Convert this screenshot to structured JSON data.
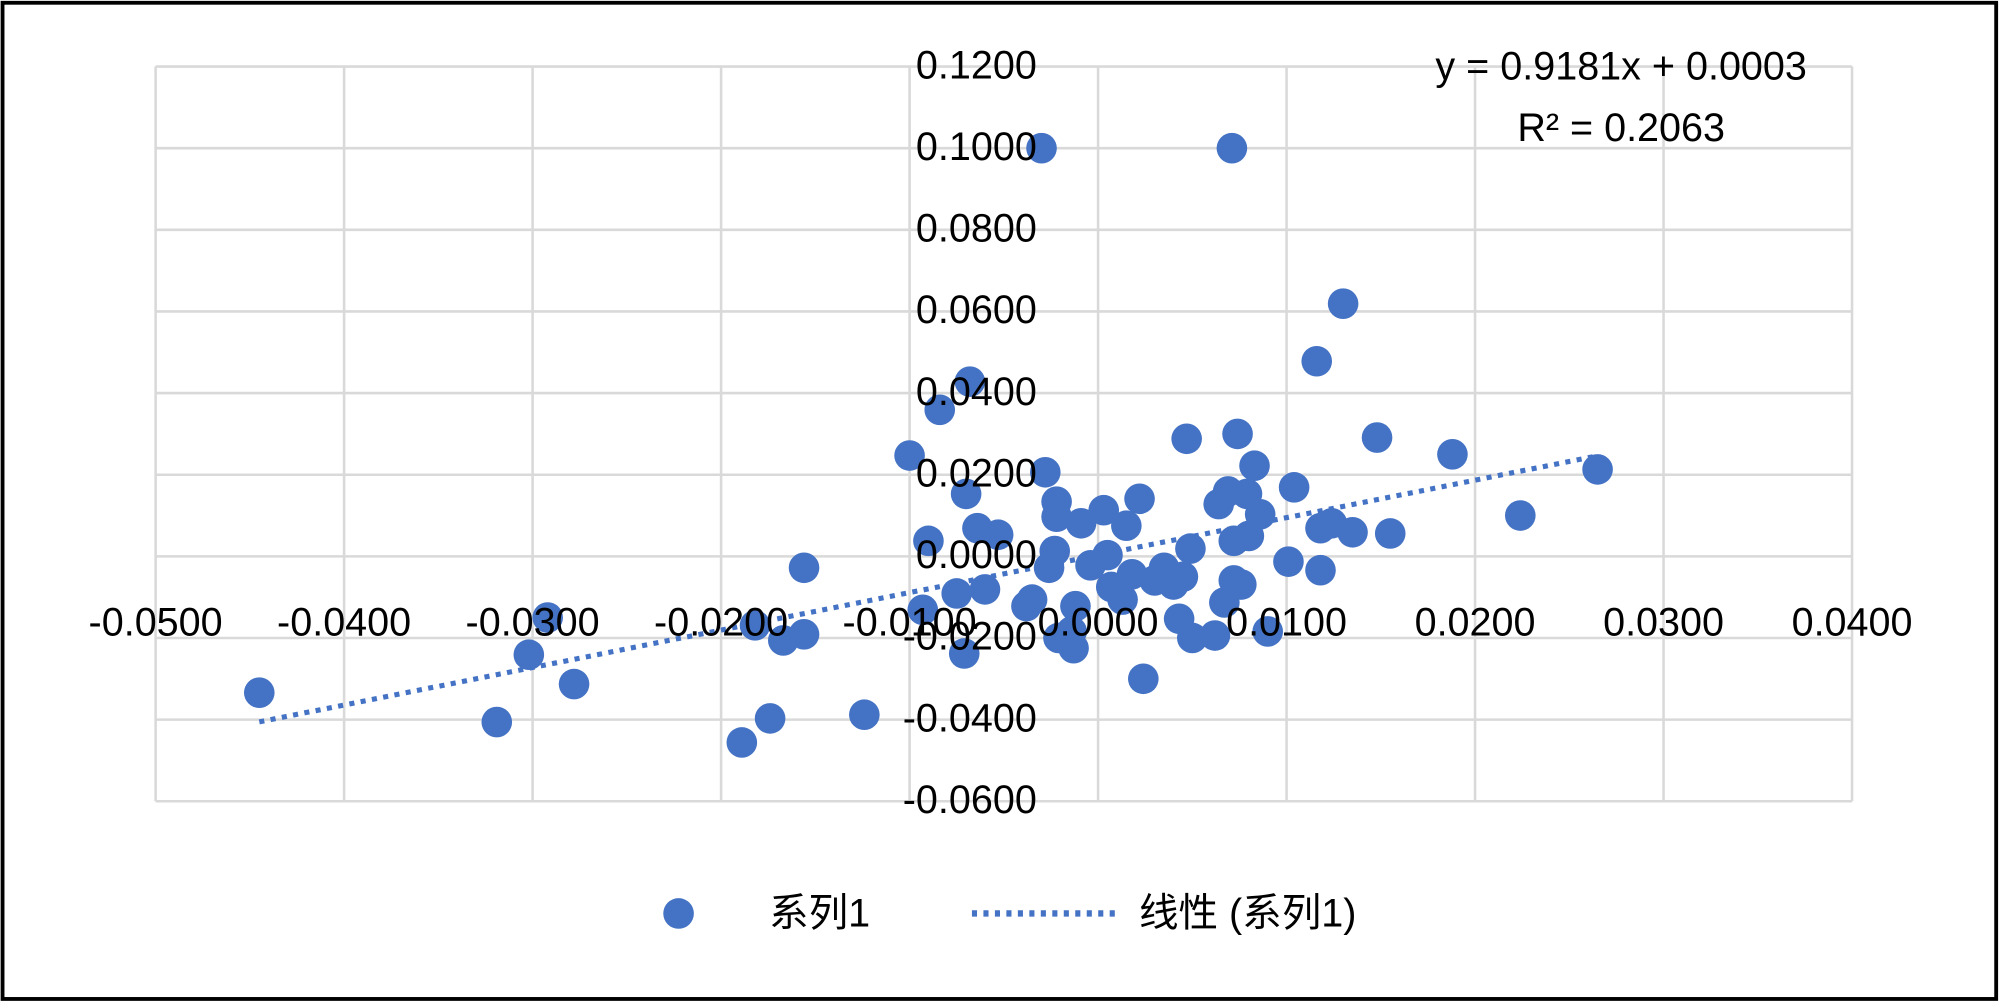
{
  "chart_data": {
    "type": "scatter",
    "x": [
      -0.0445,
      -0.0319,
      -0.0302,
      -0.0292,
      -0.0278,
      -0.0189,
      -0.0182,
      -0.0174,
      -0.0167,
      -0.0156,
      -0.0156,
      -0.0124,
      -0.01,
      -0.0093,
      -0.009,
      -0.0084,
      -0.0075,
      -0.0071,
      -0.007,
      -0.0068,
      -0.0064,
      -0.006,
      -0.0053,
      -0.0038,
      -0.0035,
      -0.003,
      -0.0028,
      -0.0026,
      -0.0023,
      -0.0022,
      -0.0021,
      -0.0022,
      -0.0014,
      -0.0013,
      -0.0012,
      -0.0009,
      -0.0004,
      0.0003,
      0.0005,
      0.0007,
      0.0013,
      0.0015,
      0.0018,
      0.0022,
      0.0024,
      0.003,
      0.0035,
      0.004,
      0.0043,
      0.0045,
      0.0047,
      0.0049,
      0.005,
      0.0062,
      0.0064,
      0.0067,
      0.0069,
      0.0071,
      0.0072,
      0.0072,
      0.0074,
      0.0076,
      0.0079,
      0.008,
      0.0083,
      0.0086,
      0.009,
      0.0101,
      0.0104,
      0.0116,
      0.0118,
      0.0118,
      0.0124,
      0.013,
      0.0135,
      0.0148,
      0.0155,
      0.0188,
      0.0224,
      0.0265
    ],
    "series": [
      {
        "name": "系列1",
        "color": "#4472c4",
        "values": [
          -0.0334,
          -0.0406,
          -0.0241,
          -0.015,
          -0.0313,
          -0.0456,
          -0.0169,
          -0.0397,
          -0.0206,
          -0.0191,
          -0.0028,
          -0.0388,
          0.0247,
          -0.0131,
          0.0038,
          0.0359,
          -0.0091,
          -0.0238,
          0.0153,
          0.0428,
          0.0069,
          -0.0081,
          0.0053,
          -0.0122,
          -0.0106,
          0.1,
          0.0206,
          -0.0028,
          0.0013,
          0.0134,
          -0.02,
          0.0097,
          -0.0184,
          -0.0225,
          -0.0122,
          0.0081,
          -0.0022,
          0.0113,
          0.0003,
          -0.0075,
          -0.0106,
          0.0075,
          -0.0044,
          0.0141,
          -0.03,
          -0.0059,
          -0.0028,
          -0.0069,
          -0.0153,
          -0.005,
          0.0288,
          0.0019,
          -0.02,
          -0.0194,
          0.0128,
          -0.0113,
          0.0159,
          0.1,
          -0.0059,
          0.0038,
          0.03,
          -0.0069,
          0.0153,
          0.005,
          0.0222,
          0.0103,
          -0.0184,
          -0.0013,
          0.0169,
          0.0478,
          -0.0034,
          0.0069,
          0.0081,
          0.0619,
          0.0059,
          0.0291,
          0.0056,
          0.025,
          0.01,
          0.0213
        ]
      }
    ],
    "trendline": {
      "name": "线性 (系列1)",
      "color": "#4472c4",
      "slope": 0.9181,
      "intercept": 0.0003,
      "xrange": [
        -0.0445,
        0.0265
      ],
      "equation": "y = 0.9181x + 0.0003",
      "r2_label": "R² = 0.2063"
    },
    "xlim": [
      -0.05,
      0.04
    ],
    "xticks": [
      {
        "value": -0.05,
        "label": "-0.0500"
      },
      {
        "value": -0.04,
        "label": "-0.0400"
      },
      {
        "value": -0.03,
        "label": "-0.0300"
      },
      {
        "value": -0.02,
        "label": "-0.0200"
      },
      {
        "value": -0.01,
        "label": "-0.0100"
      },
      {
        "value": 0,
        "label": "0.0000"
      },
      {
        "value": 0.01,
        "label": "0.0100"
      },
      {
        "value": 0.02,
        "label": "0.0200"
      },
      {
        "value": 0.03,
        "label": "0.0300"
      },
      {
        "value": 0.04,
        "label": "0.0400"
      }
    ],
    "ylim": [
      -0.06,
      0.12
    ],
    "yticks": [
      {
        "value": -0.06,
        "label": "-0.0600"
      },
      {
        "value": -0.04,
        "label": "-0.0400"
      },
      {
        "value": -0.02,
        "label": "-0.0200"
      },
      {
        "value": 0,
        "label": "0.0000"
      },
      {
        "value": 0.02,
        "label": "0.0200"
      },
      {
        "value": 0.04,
        "label": "0.0400"
      },
      {
        "value": 0.06,
        "label": "0.0600"
      },
      {
        "value": 0.08,
        "label": "0.0800"
      },
      {
        "value": 0.1,
        "label": "0.1000"
      },
      {
        "value": 0.12,
        "label": "0.1200"
      }
    ],
    "grid": true
  }
}
